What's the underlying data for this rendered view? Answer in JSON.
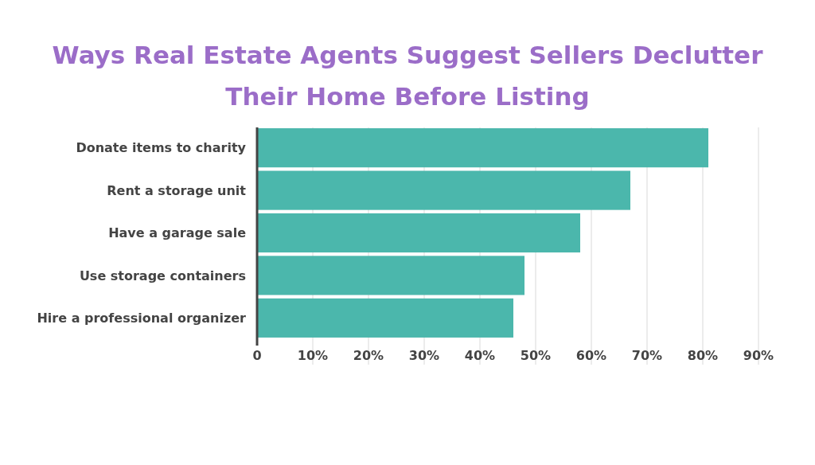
{
  "chart_data": {
    "type": "bar",
    "orientation": "horizontal",
    "title": "Ways Real Estate Agents Suggest Sellers Declutter Their Home Before Listing",
    "categories": [
      "Donate items to charity",
      "Rent a storage unit",
      "Have a garage sale",
      "Use storage containers",
      "Hire a professional organizer"
    ],
    "values": [
      81,
      67,
      58,
      48,
      46
    ],
    "color": "#4bb7ac",
    "xlim": [
      0,
      90
    ],
    "xticks": [
      0,
      {
        "value": 10,
        "label": "10%"
      },
      {
        "value": 20,
        "label": "20%"
      },
      {
        "value": 30,
        "label": "30%"
      },
      {
        "value": 40,
        "label": "40%"
      },
      {
        "value": 50,
        "label": "50%"
      },
      {
        "value": 60,
        "label": "60%"
      },
      {
        "value": 70,
        "label": "70%"
      },
      {
        "value": 80,
        "label": "80%"
      },
      {
        "value": 90,
        "label": "90%"
      }
    ],
    "grid": "x"
  }
}
